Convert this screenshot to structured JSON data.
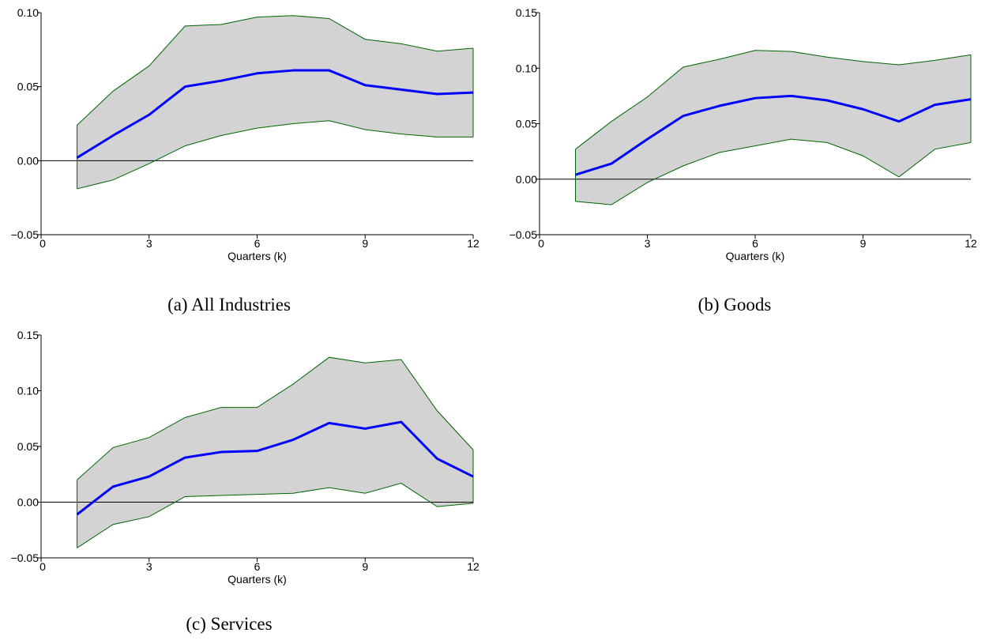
{
  "chart_data": [
    {
      "type": "line",
      "caption": "(a) All Industries",
      "xlabel": "Quarters (k)",
      "ylabel": "",
      "xlim": [
        0,
        12
      ],
      "ylim": [
        -0.05,
        0.1
      ],
      "xticks": [
        0,
        3,
        6,
        9,
        12
      ],
      "yticks": [
        -0.05,
        0.0,
        0.05,
        0.1
      ],
      "ytick_labels": [
        "−0.05",
        "0.00",
        "0.05",
        "0.10"
      ],
      "grid": false,
      "x": [
        1,
        2,
        3,
        4,
        5,
        6,
        7,
        8,
        9,
        10,
        11,
        12
      ],
      "series": [
        {
          "role": "estimate",
          "color": "#0000ff",
          "values": [
            0.002,
            0.017,
            0.031,
            0.05,
            0.054,
            0.059,
            0.061,
            0.061,
            0.051,
            0.048,
            0.045,
            0.046
          ]
        },
        {
          "role": "upper",
          "color": "#006400",
          "values": [
            0.024,
            0.047,
            0.064,
            0.091,
            0.092,
            0.097,
            0.098,
            0.096,
            0.082,
            0.079,
            0.074,
            0.076
          ]
        },
        {
          "role": "lower",
          "color": "#006400",
          "values": [
            -0.019,
            -0.013,
            -0.002,
            0.01,
            0.017,
            0.022,
            0.025,
            0.027,
            0.021,
            0.018,
            0.016,
            0.016
          ]
        }
      ]
    },
    {
      "type": "line",
      "caption": "(b) Goods",
      "xlabel": "Quarters (k)",
      "ylabel": "",
      "xlim": [
        0,
        12
      ],
      "ylim": [
        -0.05,
        0.15
      ],
      "xticks": [
        0,
        3,
        6,
        9,
        12
      ],
      "yticks": [
        -0.05,
        0.0,
        0.05,
        0.1,
        0.15
      ],
      "ytick_labels": [
        "−0.05",
        "0.00",
        "0.05",
        "0.10",
        "0.15"
      ],
      "grid": false,
      "x": [
        1,
        2,
        3,
        4,
        5,
        6,
        7,
        8,
        9,
        10,
        11,
        12
      ],
      "series": [
        {
          "role": "estimate",
          "color": "#0000ff",
          "values": [
            0.004,
            0.014,
            0.036,
            0.057,
            0.066,
            0.073,
            0.075,
            0.071,
            0.063,
            0.052,
            0.067,
            0.072
          ]
        },
        {
          "role": "upper",
          "color": "#006400",
          "values": [
            0.027,
            0.052,
            0.074,
            0.101,
            0.108,
            0.116,
            0.115,
            0.11,
            0.106,
            0.103,
            0.107,
            0.112
          ]
        },
        {
          "role": "lower",
          "color": "#006400",
          "values": [
            -0.02,
            -0.023,
            -0.003,
            0.012,
            0.024,
            0.03,
            0.036,
            0.033,
            0.021,
            0.002,
            0.027,
            0.033
          ]
        }
      ]
    },
    {
      "type": "line",
      "caption": "(c) Services",
      "xlabel": "Quarters (k)",
      "ylabel": "",
      "xlim": [
        0,
        12
      ],
      "ylim": [
        -0.05,
        0.15
      ],
      "xticks": [
        0,
        3,
        6,
        9,
        12
      ],
      "yticks": [
        -0.05,
        0.0,
        0.05,
        0.1,
        0.15
      ],
      "ytick_labels": [
        "−0.05",
        "0.00",
        "0.05",
        "0.10",
        "0.15"
      ],
      "grid": false,
      "x": [
        1,
        2,
        3,
        4,
        5,
        6,
        7,
        8,
        9,
        10,
        11,
        12
      ],
      "series": [
        {
          "role": "estimate",
          "color": "#0000ff",
          "values": [
            -0.011,
            0.014,
            0.023,
            0.04,
            0.045,
            0.046,
            0.056,
            0.071,
            0.066,
            0.072,
            0.039,
            0.023
          ]
        },
        {
          "role": "upper",
          "color": "#006400",
          "values": [
            0.02,
            0.049,
            0.058,
            0.076,
            0.085,
            0.085,
            0.106,
            0.13,
            0.125,
            0.128,
            0.082,
            0.047
          ]
        },
        {
          "role": "lower",
          "color": "#006400",
          "values": [
            -0.041,
            -0.02,
            -0.013,
            0.005,
            0.006,
            0.007,
            0.008,
            0.013,
            0.008,
            0.017,
            -0.004,
            -0.001
          ]
        }
      ]
    }
  ],
  "colors": {
    "band_fill": "#d3d3d3",
    "band_edge": "#006400",
    "estimate": "#0000ff",
    "zero_line": "#000000"
  }
}
